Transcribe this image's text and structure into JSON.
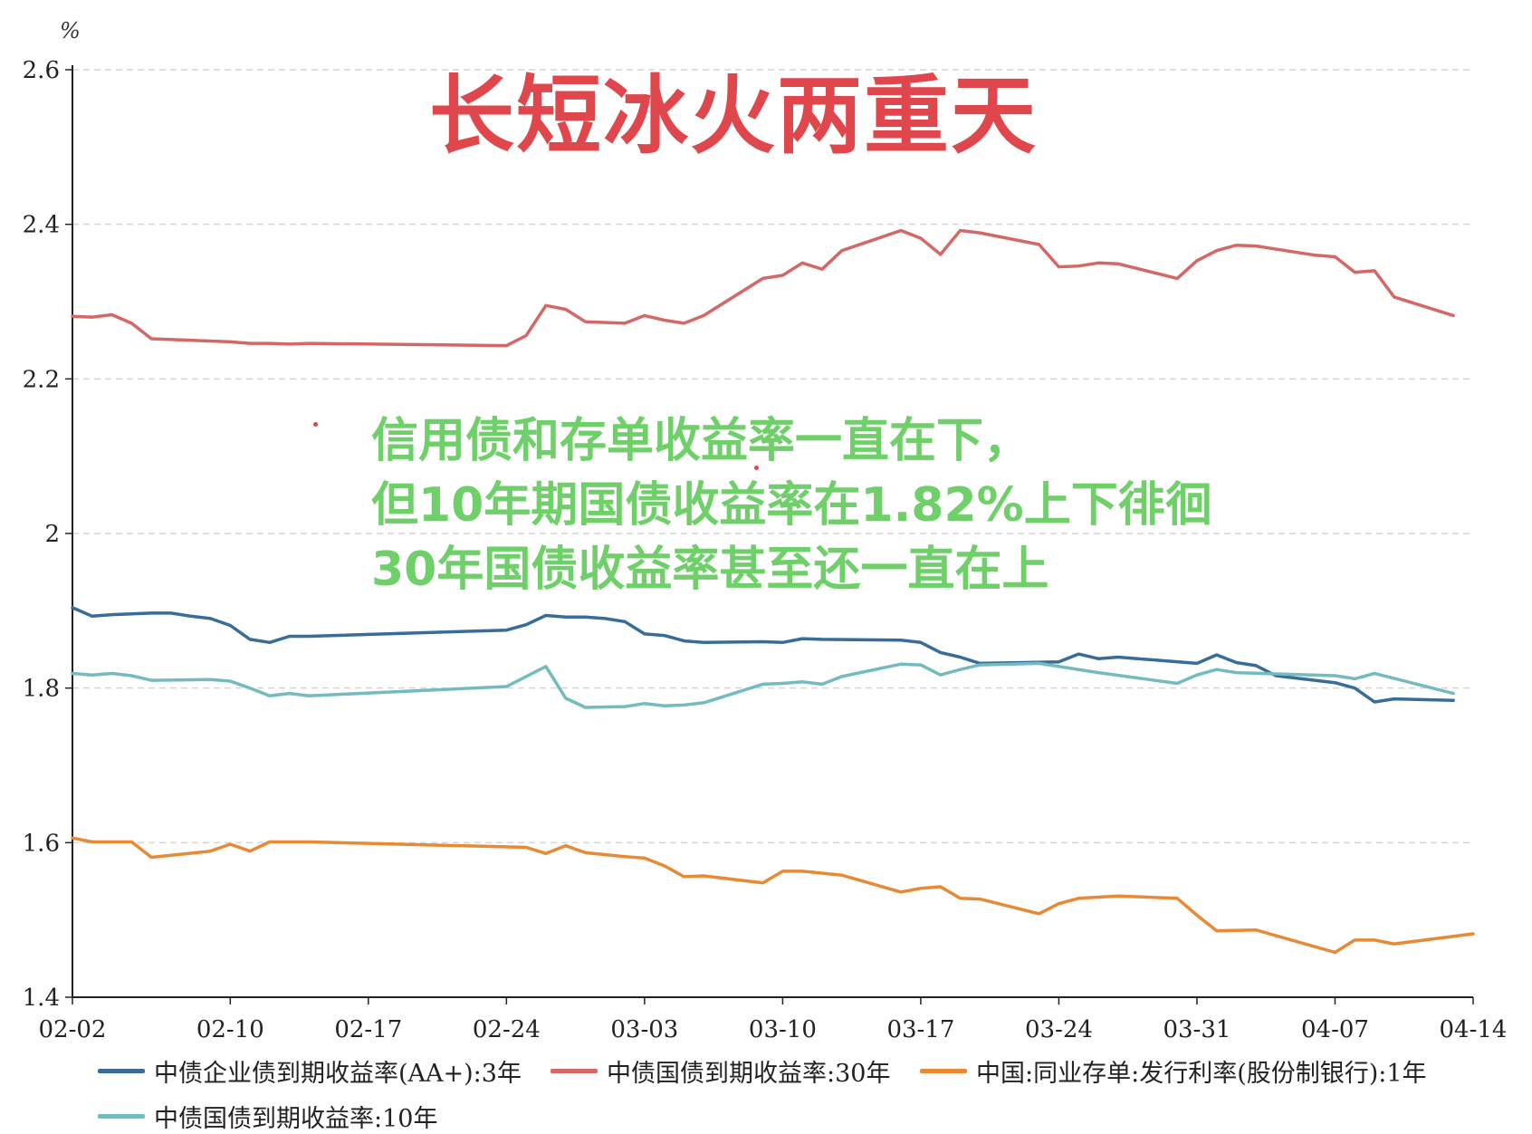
{
  "chart_data": {
    "type": "line",
    "title": "长短冰火两重天",
    "unit_label": "%",
    "annotation_lines": [
      "信用债和存单收益率一直在下，",
      "但10年期国债收益率在1.82%上下徘徊",
      "30年国债收益率甚至还一直在上"
    ],
    "ylim": [
      1.4,
      2.6
    ],
    "y_ticks": [
      1.4,
      1.6,
      1.8,
      2,
      2.2,
      2.4,
      2.6
    ],
    "y_tick_labels": [
      "1.4",
      "1.6",
      "1.8",
      "2",
      "2.2",
      "2.4",
      "2.6"
    ],
    "xlim": [
      "2025-02-02",
      "2025-04-14"
    ],
    "x_ticks": [
      "2025-02-02",
      "2025-02-10",
      "2025-02-17",
      "2025-02-24",
      "2025-03-03",
      "2025-03-10",
      "2025-03-17",
      "2025-03-24",
      "2025-03-31",
      "2025-04-07",
      "2025-04-14"
    ],
    "x_tick_labels": [
      "02-02",
      "02-10",
      "02-17",
      "02-24",
      "03-03",
      "03-10",
      "03-17",
      "03-24",
      "03-31",
      "04-07",
      "04-14"
    ],
    "grid": "horizontal-dashed",
    "legend_position": "bottom",
    "series": [
      {
        "name": "中债企业债到期收益率(AA+):3年",
        "color": "#376d98",
        "points": [
          [
            "2025-02-02",
            1.904
          ],
          [
            "2025-02-03",
            1.893
          ],
          [
            "2025-02-04",
            1.895
          ],
          [
            "2025-02-05",
            1.896
          ],
          [
            "2025-02-06",
            1.897
          ],
          [
            "2025-02-07",
            1.897
          ],
          [
            "2025-02-08",
            1.893
          ],
          [
            "2025-02-09",
            1.89
          ],
          [
            "2025-02-10",
            1.881
          ],
          [
            "2025-02-11",
            1.863
          ],
          [
            "2025-02-12",
            1.859
          ],
          [
            "2025-02-13",
            1.867
          ],
          [
            "2025-02-14",
            1.867
          ],
          [
            "2025-02-24",
            1.875
          ],
          [
            "2025-02-25",
            1.882
          ],
          [
            "2025-02-26",
            1.894
          ],
          [
            "2025-02-27",
            1.892
          ],
          [
            "2025-02-28",
            1.892
          ],
          [
            "2025-03-01",
            1.89
          ],
          [
            "2025-03-02",
            1.886
          ],
          [
            "2025-03-03",
            1.87
          ],
          [
            "2025-03-04",
            1.868
          ],
          [
            "2025-03-05",
            1.861
          ],
          [
            "2025-03-06",
            1.859
          ],
          [
            "2025-03-09",
            1.86
          ],
          [
            "2025-03-10",
            1.859
          ],
          [
            "2025-03-11",
            1.864
          ],
          [
            "2025-03-12",
            1.863
          ],
          [
            "2025-03-16",
            1.862
          ],
          [
            "2025-03-17",
            1.859
          ],
          [
            "2025-03-18",
            1.846
          ],
          [
            "2025-03-19",
            1.84
          ],
          [
            "2025-03-20",
            1.832
          ],
          [
            "2025-03-24",
            1.834
          ],
          [
            "2025-03-25",
            1.844
          ],
          [
            "2025-03-26",
            1.838
          ],
          [
            "2025-03-27",
            1.84
          ],
          [
            "2025-03-31",
            1.832
          ],
          [
            "2025-04-01",
            1.843
          ],
          [
            "2025-04-02",
            1.833
          ],
          [
            "2025-04-03",
            1.829
          ],
          [
            "2025-04-04",
            1.816
          ],
          [
            "2025-04-05",
            1.813
          ],
          [
            "2025-04-07",
            1.807
          ],
          [
            "2025-04-08",
            1.8
          ],
          [
            "2025-04-09",
            1.782
          ],
          [
            "2025-04-10",
            1.786
          ],
          [
            "2025-04-13",
            1.784
          ]
        ]
      },
      {
        "name": "中债国债到期收益率:30年",
        "color": "#d46866",
        "points": [
          [
            "2025-02-02",
            2.281
          ],
          [
            "2025-02-03",
            2.28
          ],
          [
            "2025-02-04",
            2.283
          ],
          [
            "2025-02-05",
            2.272
          ],
          [
            "2025-02-06",
            2.252
          ],
          [
            "2025-02-10",
            2.248
          ],
          [
            "2025-02-11",
            2.246
          ],
          [
            "2025-02-12",
            2.246
          ],
          [
            "2025-02-13",
            2.245
          ],
          [
            "2025-02-14",
            2.246
          ],
          [
            "2025-02-24",
            2.243
          ],
          [
            "2025-02-25",
            2.256
          ],
          [
            "2025-02-26",
            2.295
          ],
          [
            "2025-02-27",
            2.29
          ],
          [
            "2025-02-28",
            2.274
          ],
          [
            "2025-03-02",
            2.272
          ],
          [
            "2025-03-03",
            2.282
          ],
          [
            "2025-03-04",
            2.276
          ],
          [
            "2025-03-05",
            2.272
          ],
          [
            "2025-03-06",
            2.282
          ],
          [
            "2025-03-09",
            2.33
          ],
          [
            "2025-03-10",
            2.334
          ],
          [
            "2025-03-11",
            2.35
          ],
          [
            "2025-03-12",
            2.342
          ],
          [
            "2025-03-13",
            2.366
          ],
          [
            "2025-03-16",
            2.392
          ],
          [
            "2025-03-17",
            2.382
          ],
          [
            "2025-03-18",
            2.361
          ],
          [
            "2025-03-19",
            2.392
          ],
          [
            "2025-03-20",
            2.389
          ],
          [
            "2025-03-23",
            2.374
          ],
          [
            "2025-03-24",
            2.345
          ],
          [
            "2025-03-25",
            2.346
          ],
          [
            "2025-03-26",
            2.35
          ],
          [
            "2025-03-27",
            2.349
          ],
          [
            "2025-03-30",
            2.33
          ],
          [
            "2025-03-31",
            2.353
          ],
          [
            "2025-04-01",
            2.366
          ],
          [
            "2025-04-02",
            2.373
          ],
          [
            "2025-04-03",
            2.372
          ],
          [
            "2025-04-06",
            2.36
          ],
          [
            "2025-04-07",
            2.358
          ],
          [
            "2025-04-08",
            2.338
          ],
          [
            "2025-04-09",
            2.34
          ],
          [
            "2025-04-10",
            2.306
          ],
          [
            "2025-04-13",
            2.282
          ]
        ]
      },
      {
        "name": "中国:同业存单:发行利率(股份制银行):1年",
        "color": "#e88a35",
        "points": [
          [
            "2025-02-02",
            1.606
          ],
          [
            "2025-02-03",
            1.601
          ],
          [
            "2025-02-05",
            1.601
          ],
          [
            "2025-02-06",
            1.581
          ],
          [
            "2025-02-09",
            1.589
          ],
          [
            "2025-02-10",
            1.598
          ],
          [
            "2025-02-11",
            1.589
          ],
          [
            "2025-02-12",
            1.601
          ],
          [
            "2025-02-14",
            1.601
          ],
          [
            "2025-02-25",
            1.594
          ],
          [
            "2025-02-26",
            1.586
          ],
          [
            "2025-02-27",
            1.596
          ],
          [
            "2025-02-28",
            1.587
          ],
          [
            "2025-03-02",
            1.582
          ],
          [
            "2025-03-03",
            1.58
          ],
          [
            "2025-03-04",
            1.57
          ],
          [
            "2025-03-05",
            1.556
          ],
          [
            "2025-03-06",
            1.557
          ],
          [
            "2025-03-09",
            1.548
          ],
          [
            "2025-03-10",
            1.563
          ],
          [
            "2025-03-11",
            1.563
          ],
          [
            "2025-03-13",
            1.558
          ],
          [
            "2025-03-16",
            1.536
          ],
          [
            "2025-03-17",
            1.541
          ],
          [
            "2025-03-18",
            1.543
          ],
          [
            "2025-03-19",
            1.528
          ],
          [
            "2025-03-20",
            1.527
          ],
          [
            "2025-03-23",
            1.508
          ],
          [
            "2025-03-24",
            1.521
          ],
          [
            "2025-03-25",
            1.528
          ],
          [
            "2025-03-27",
            1.531
          ],
          [
            "2025-03-30",
            1.528
          ],
          [
            "2025-03-31",
            1.506
          ],
          [
            "2025-04-01",
            1.486
          ],
          [
            "2025-04-03",
            1.487
          ],
          [
            "2025-04-07",
            1.458
          ],
          [
            "2025-04-08",
            1.474
          ],
          [
            "2025-04-09",
            1.474
          ],
          [
            "2025-04-10",
            1.469
          ],
          [
            "2025-04-14",
            1.482
          ]
        ]
      },
      {
        "name": "中债国债到期收益率:10年",
        "color": "#73bbbf",
        "points": [
          [
            "2025-02-02",
            1.819
          ],
          [
            "2025-02-03",
            1.817
          ],
          [
            "2025-02-04",
            1.819
          ],
          [
            "2025-02-05",
            1.816
          ],
          [
            "2025-02-06",
            1.81
          ],
          [
            "2025-02-09",
            1.811
          ],
          [
            "2025-02-10",
            1.809
          ],
          [
            "2025-02-11",
            1.8
          ],
          [
            "2025-02-12",
            1.79
          ],
          [
            "2025-02-13",
            1.793
          ],
          [
            "2025-02-14",
            1.79
          ],
          [
            "2025-02-24",
            1.802
          ],
          [
            "2025-02-25",
            1.815
          ],
          [
            "2025-02-26",
            1.828
          ],
          [
            "2025-02-27",
            1.787
          ],
          [
            "2025-02-28",
            1.775
          ],
          [
            "2025-03-02",
            1.776
          ],
          [
            "2025-03-03",
            1.78
          ],
          [
            "2025-03-04",
            1.777
          ],
          [
            "2025-03-05",
            1.778
          ],
          [
            "2025-03-06",
            1.781
          ],
          [
            "2025-03-09",
            1.805
          ],
          [
            "2025-03-10",
            1.806
          ],
          [
            "2025-03-11",
            1.808
          ],
          [
            "2025-03-12",
            1.805
          ],
          [
            "2025-03-13",
            1.815
          ],
          [
            "2025-03-16",
            1.831
          ],
          [
            "2025-03-17",
            1.83
          ],
          [
            "2025-03-18",
            1.817
          ],
          [
            "2025-03-19",
            1.824
          ],
          [
            "2025-03-20",
            1.83
          ],
          [
            "2025-03-23",
            1.832
          ],
          [
            "2025-03-26",
            1.82
          ],
          [
            "2025-03-30",
            1.806
          ],
          [
            "2025-03-31",
            1.817
          ],
          [
            "2025-04-01",
            1.824
          ],
          [
            "2025-04-02",
            1.82
          ],
          [
            "2025-04-07",
            1.816
          ],
          [
            "2025-04-08",
            1.812
          ],
          [
            "2025-04-09",
            1.819
          ],
          [
            "2025-04-13",
            1.793
          ]
        ]
      }
    ]
  }
}
